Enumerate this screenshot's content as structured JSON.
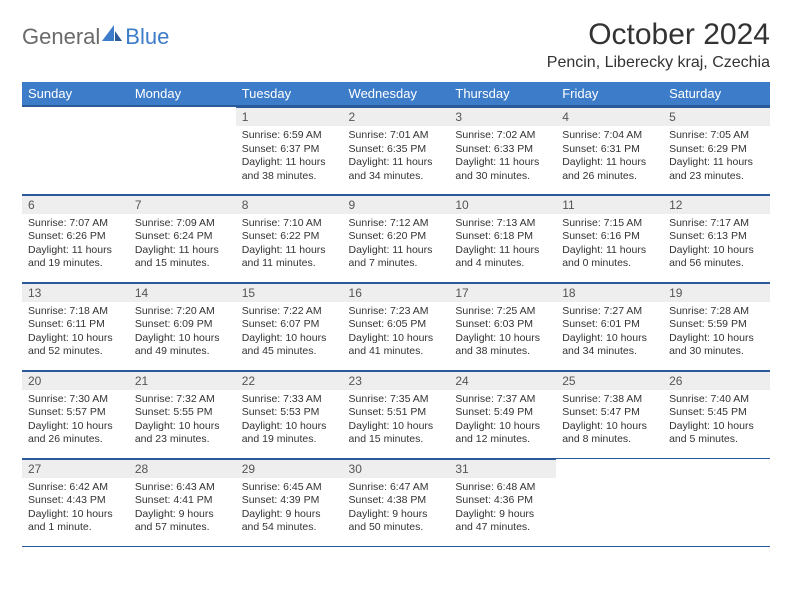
{
  "logo": {
    "general": "General",
    "blue": "Blue"
  },
  "title": "October 2024",
  "location": "Pencin, Liberecky kraj, Czechia",
  "colors": {
    "header_bg": "#3d7cc9",
    "header_border": "#2a5a99",
    "daynum_bg": "#eeeeee",
    "background": "#ffffff"
  },
  "weekdays": [
    "Sunday",
    "Monday",
    "Tuesday",
    "Wednesday",
    "Thursday",
    "Friday",
    "Saturday"
  ],
  "weeks": [
    [
      {
        "n": "",
        "sr": "",
        "ss": "",
        "dl": ""
      },
      {
        "n": "",
        "sr": "",
        "ss": "",
        "dl": ""
      },
      {
        "n": "1",
        "sr": "Sunrise: 6:59 AM",
        "ss": "Sunset: 6:37 PM",
        "dl": "Daylight: 11 hours and 38 minutes."
      },
      {
        "n": "2",
        "sr": "Sunrise: 7:01 AM",
        "ss": "Sunset: 6:35 PM",
        "dl": "Daylight: 11 hours and 34 minutes."
      },
      {
        "n": "3",
        "sr": "Sunrise: 7:02 AM",
        "ss": "Sunset: 6:33 PM",
        "dl": "Daylight: 11 hours and 30 minutes."
      },
      {
        "n": "4",
        "sr": "Sunrise: 7:04 AM",
        "ss": "Sunset: 6:31 PM",
        "dl": "Daylight: 11 hours and 26 minutes."
      },
      {
        "n": "5",
        "sr": "Sunrise: 7:05 AM",
        "ss": "Sunset: 6:29 PM",
        "dl": "Daylight: 11 hours and 23 minutes."
      }
    ],
    [
      {
        "n": "6",
        "sr": "Sunrise: 7:07 AM",
        "ss": "Sunset: 6:26 PM",
        "dl": "Daylight: 11 hours and 19 minutes."
      },
      {
        "n": "7",
        "sr": "Sunrise: 7:09 AM",
        "ss": "Sunset: 6:24 PM",
        "dl": "Daylight: 11 hours and 15 minutes."
      },
      {
        "n": "8",
        "sr": "Sunrise: 7:10 AM",
        "ss": "Sunset: 6:22 PM",
        "dl": "Daylight: 11 hours and 11 minutes."
      },
      {
        "n": "9",
        "sr": "Sunrise: 7:12 AM",
        "ss": "Sunset: 6:20 PM",
        "dl": "Daylight: 11 hours and 7 minutes."
      },
      {
        "n": "10",
        "sr": "Sunrise: 7:13 AM",
        "ss": "Sunset: 6:18 PM",
        "dl": "Daylight: 11 hours and 4 minutes."
      },
      {
        "n": "11",
        "sr": "Sunrise: 7:15 AM",
        "ss": "Sunset: 6:16 PM",
        "dl": "Daylight: 11 hours and 0 minutes."
      },
      {
        "n": "12",
        "sr": "Sunrise: 7:17 AM",
        "ss": "Sunset: 6:13 PM",
        "dl": "Daylight: 10 hours and 56 minutes."
      }
    ],
    [
      {
        "n": "13",
        "sr": "Sunrise: 7:18 AM",
        "ss": "Sunset: 6:11 PM",
        "dl": "Daylight: 10 hours and 52 minutes."
      },
      {
        "n": "14",
        "sr": "Sunrise: 7:20 AM",
        "ss": "Sunset: 6:09 PM",
        "dl": "Daylight: 10 hours and 49 minutes."
      },
      {
        "n": "15",
        "sr": "Sunrise: 7:22 AM",
        "ss": "Sunset: 6:07 PM",
        "dl": "Daylight: 10 hours and 45 minutes."
      },
      {
        "n": "16",
        "sr": "Sunrise: 7:23 AM",
        "ss": "Sunset: 6:05 PM",
        "dl": "Daylight: 10 hours and 41 minutes."
      },
      {
        "n": "17",
        "sr": "Sunrise: 7:25 AM",
        "ss": "Sunset: 6:03 PM",
        "dl": "Daylight: 10 hours and 38 minutes."
      },
      {
        "n": "18",
        "sr": "Sunrise: 7:27 AM",
        "ss": "Sunset: 6:01 PM",
        "dl": "Daylight: 10 hours and 34 minutes."
      },
      {
        "n": "19",
        "sr": "Sunrise: 7:28 AM",
        "ss": "Sunset: 5:59 PM",
        "dl": "Daylight: 10 hours and 30 minutes."
      }
    ],
    [
      {
        "n": "20",
        "sr": "Sunrise: 7:30 AM",
        "ss": "Sunset: 5:57 PM",
        "dl": "Daylight: 10 hours and 26 minutes."
      },
      {
        "n": "21",
        "sr": "Sunrise: 7:32 AM",
        "ss": "Sunset: 5:55 PM",
        "dl": "Daylight: 10 hours and 23 minutes."
      },
      {
        "n": "22",
        "sr": "Sunrise: 7:33 AM",
        "ss": "Sunset: 5:53 PM",
        "dl": "Daylight: 10 hours and 19 minutes."
      },
      {
        "n": "23",
        "sr": "Sunrise: 7:35 AM",
        "ss": "Sunset: 5:51 PM",
        "dl": "Daylight: 10 hours and 15 minutes."
      },
      {
        "n": "24",
        "sr": "Sunrise: 7:37 AM",
        "ss": "Sunset: 5:49 PM",
        "dl": "Daylight: 10 hours and 12 minutes."
      },
      {
        "n": "25",
        "sr": "Sunrise: 7:38 AM",
        "ss": "Sunset: 5:47 PM",
        "dl": "Daylight: 10 hours and 8 minutes."
      },
      {
        "n": "26",
        "sr": "Sunrise: 7:40 AM",
        "ss": "Sunset: 5:45 PM",
        "dl": "Daylight: 10 hours and 5 minutes."
      }
    ],
    [
      {
        "n": "27",
        "sr": "Sunrise: 6:42 AM",
        "ss": "Sunset: 4:43 PM",
        "dl": "Daylight: 10 hours and 1 minute."
      },
      {
        "n": "28",
        "sr": "Sunrise: 6:43 AM",
        "ss": "Sunset: 4:41 PM",
        "dl": "Daylight: 9 hours and 57 minutes."
      },
      {
        "n": "29",
        "sr": "Sunrise: 6:45 AM",
        "ss": "Sunset: 4:39 PM",
        "dl": "Daylight: 9 hours and 54 minutes."
      },
      {
        "n": "30",
        "sr": "Sunrise: 6:47 AM",
        "ss": "Sunset: 4:38 PM",
        "dl": "Daylight: 9 hours and 50 minutes."
      },
      {
        "n": "31",
        "sr": "Sunrise: 6:48 AM",
        "ss": "Sunset: 4:36 PM",
        "dl": "Daylight: 9 hours and 47 minutes."
      },
      {
        "n": "",
        "sr": "",
        "ss": "",
        "dl": ""
      },
      {
        "n": "",
        "sr": "",
        "ss": "",
        "dl": ""
      }
    ]
  ]
}
